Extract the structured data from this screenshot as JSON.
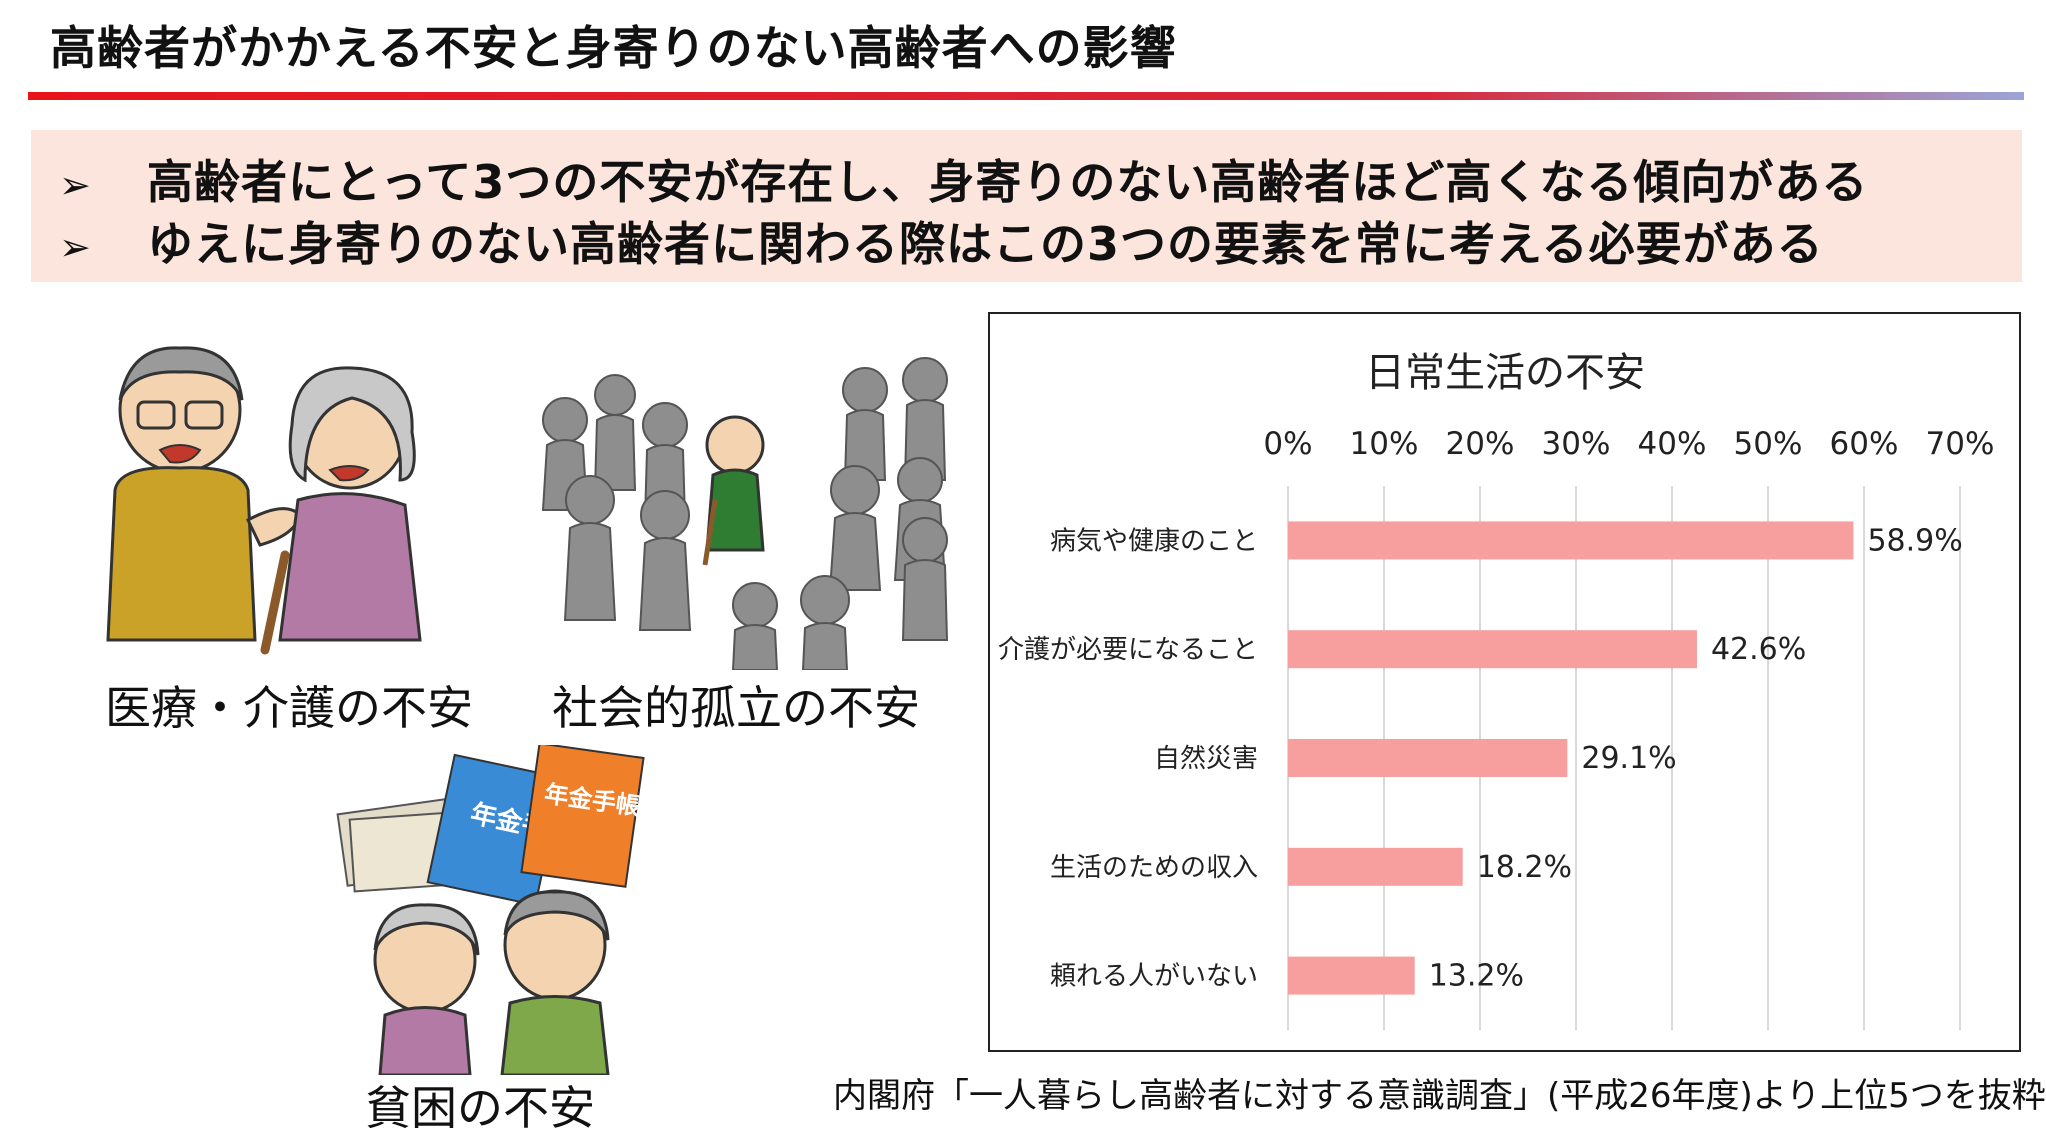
{
  "page": {
    "title": "高齢者がかかえる不安と身寄りのない高齢者への影響",
    "summary": [
      "高齢者にとって3つの不安が存在し、身寄りのない高齢者ほど高くなる傾向がある",
      "ゆえに身寄りのない高齢者に関わる際はこの3つの要素を常に考える必要がある"
    ],
    "bullet_symbol": "➢",
    "illustrations": {
      "medical": "医療・介護の不安",
      "social": "社会的孤立の不安",
      "poverty": "貧困の不安",
      "pension_book_text": "年金手帳"
    },
    "source": "内閣府「一人暮らし高齢者に対する意識調査」(平成26年度)より上位5つを抜粋"
  },
  "colors": {
    "accent_red": "#e8141c",
    "summary_bg": "#fbe5dc",
    "bar": "#f79f9f",
    "grid": "#d9d9d9"
  },
  "chart_data": {
    "type": "bar",
    "orientation": "horizontal",
    "title": "日常生活の不安",
    "categories": [
      "病気や健康のこと",
      "介護が必要になること",
      "自然災害",
      "生活のための収入",
      "頼れる人がいない"
    ],
    "values": [
      58.9,
      42.6,
      29.1,
      18.2,
      13.2
    ],
    "value_labels": [
      "58.9%",
      "42.6%",
      "29.1%",
      "18.2%",
      "13.2%"
    ],
    "xlim": [
      0,
      70
    ],
    "xticks": [
      0,
      10,
      20,
      30,
      40,
      50,
      60,
      70
    ],
    "xtick_labels": [
      "0%",
      "10%",
      "20%",
      "30%",
      "40%",
      "50%",
      "60%",
      "70%"
    ],
    "axis_position": "top",
    "grid": true,
    "legend": "none"
  }
}
